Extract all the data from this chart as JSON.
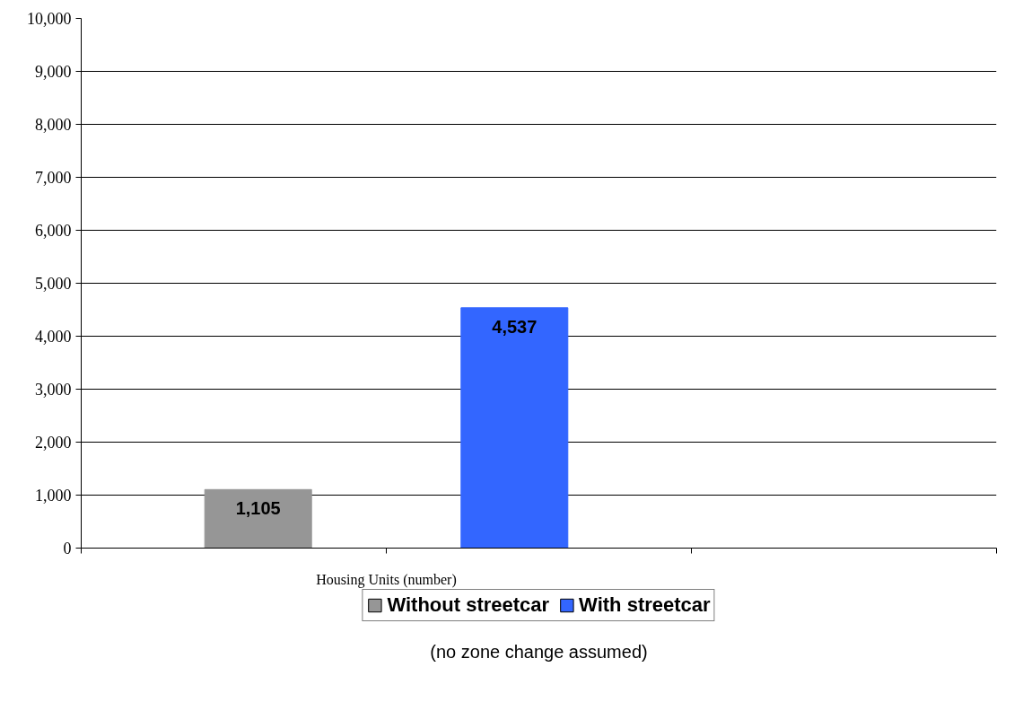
{
  "chart_data": {
    "type": "bar",
    "categories": [
      "Housing Units (number)"
    ],
    "series": [
      {
        "name": "Without streetcar",
        "color": "#969696",
        "values": [
          1105
        ],
        "value_labels": [
          "1,105"
        ]
      },
      {
        "name": "With streetcar",
        "color": "#3366ff",
        "values": [
          4537
        ],
        "value_labels": [
          "4,537"
        ]
      }
    ],
    "ylim": [
      0,
      10000
    ],
    "yticks": [
      {
        "value": 0,
        "label": "0"
      },
      {
        "value": 1000,
        "label": "1,000"
      },
      {
        "value": 2000,
        "label": "2,000"
      },
      {
        "value": 3000,
        "label": "3,000"
      },
      {
        "value": 4000,
        "label": "4,000"
      },
      {
        "value": 5000,
        "label": "5,000"
      },
      {
        "value": 6000,
        "label": "6,000"
      },
      {
        "value": 7000,
        "label": "7,000"
      },
      {
        "value": 8000,
        "label": "8,000"
      },
      {
        "value": 9000,
        "label": "9,000"
      },
      {
        "value": 10000,
        "label": "10,000"
      }
    ],
    "grid": "y",
    "legend": "bottom",
    "annotations": [
      "(no zone change assumed)"
    ]
  }
}
